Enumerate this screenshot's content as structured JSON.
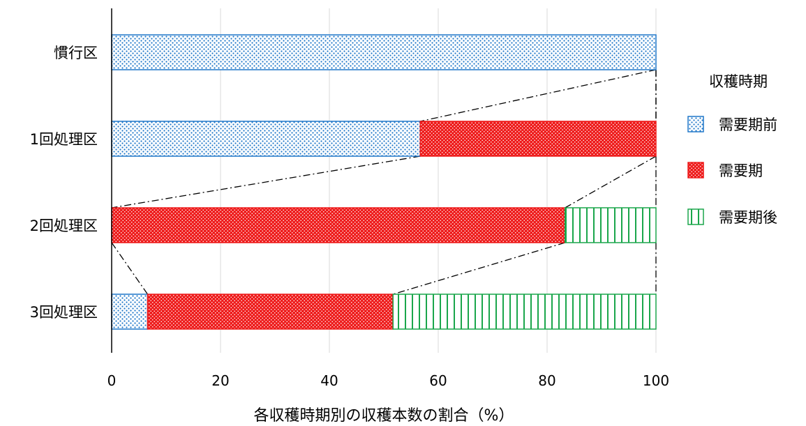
{
  "chart_data": {
    "type": "bar",
    "orientation": "horizontal",
    "stacked": true,
    "categories": [
      "慣行区",
      "1回処理区",
      "2回処理区",
      "3回処理区"
    ],
    "series": [
      {
        "name": "需要期前",
        "values": [
          100,
          56.7,
          0,
          6.6
        ],
        "color": "#1f77c9",
        "pattern": "dots-blue"
      },
      {
        "name": "需要期",
        "values": [
          0,
          43.3,
          83.3,
          45.1
        ],
        "color": "#ee1c1c",
        "pattern": "dots-red"
      },
      {
        "name": "需要期後",
        "values": [
          0,
          0,
          16.7,
          48.3
        ],
        "color": "#1aa64b",
        "pattern": "vertical-lines-green"
      }
    ],
    "title": "",
    "xlabel": "各収穫時期別の収穫本数の割合（%）",
    "ylabel": "",
    "xlim": [
      0,
      100
    ],
    "xticks": [
      "0",
      "20",
      "40",
      "60",
      "80",
      "100"
    ],
    "grid": "vertical",
    "legend": {
      "title": "収穫時期",
      "placement": "right"
    },
    "connector_lines": "dash-dot"
  }
}
